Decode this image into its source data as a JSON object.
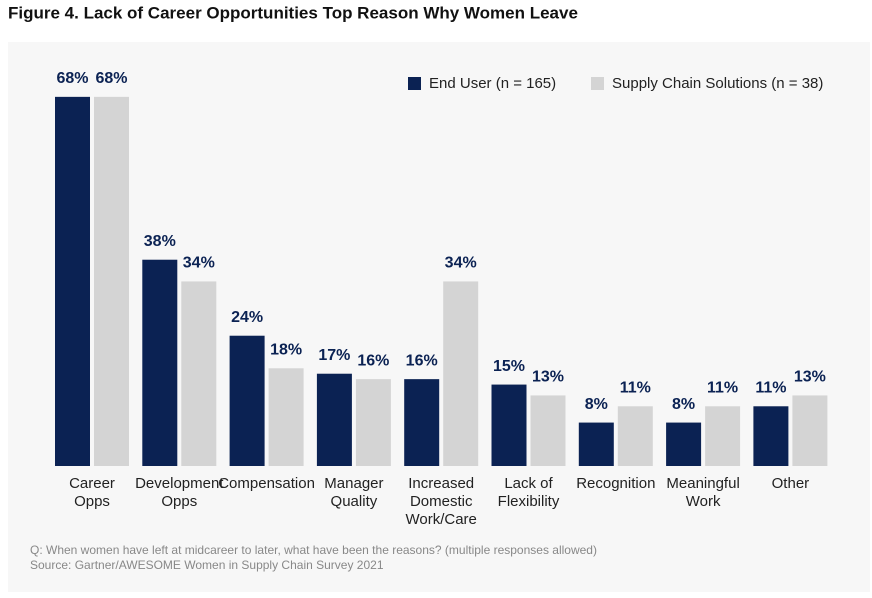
{
  "chart_data": {
    "type": "bar",
    "title": "Figure 4. Lack of Career Opportunities Top Reason Why Women Leave",
    "categories": [
      [
        "Career",
        "Opps"
      ],
      [
        "Development",
        "Opps"
      ],
      [
        "Compensation"
      ],
      [
        "Manager",
        "Quality"
      ],
      [
        "Increased",
        "Domestic",
        "Work/Care"
      ],
      [
        "Lack of",
        "Flexibility"
      ],
      [
        "Recognition"
      ],
      [
        "Meaningful",
        "Work"
      ],
      [
        "Other"
      ]
    ],
    "series": [
      {
        "name": "End User (n = 165)",
        "color": "#0b2253",
        "values": [
          68,
          38,
          24,
          17,
          16,
          15,
          8,
          8,
          11
        ],
        "value_labels": [
          "68%",
          "38%",
          "24%",
          "17%",
          "16%",
          "15%",
          "8%",
          "8%",
          "11%"
        ]
      },
      {
        "name": "Supply Chain Solutions (n = 38)",
        "color": "#d4d4d4",
        "values": [
          68,
          34,
          18,
          16,
          34,
          13,
          11,
          11,
          13
        ],
        "value_labels": [
          "68%",
          "34%",
          "18%",
          "16%",
          "34%",
          "13%",
          "11%",
          "11%",
          "13%"
        ]
      }
    ],
    "ylim": [
      0,
      70
    ],
    "legend": "top-right",
    "notes": [
      "Q: When women have left at midcareer to later, what have been the reasons? (multiple responses allowed)",
      "Source: Gartner/AWESOME Women in Supply Chain Survey 2021"
    ]
  }
}
